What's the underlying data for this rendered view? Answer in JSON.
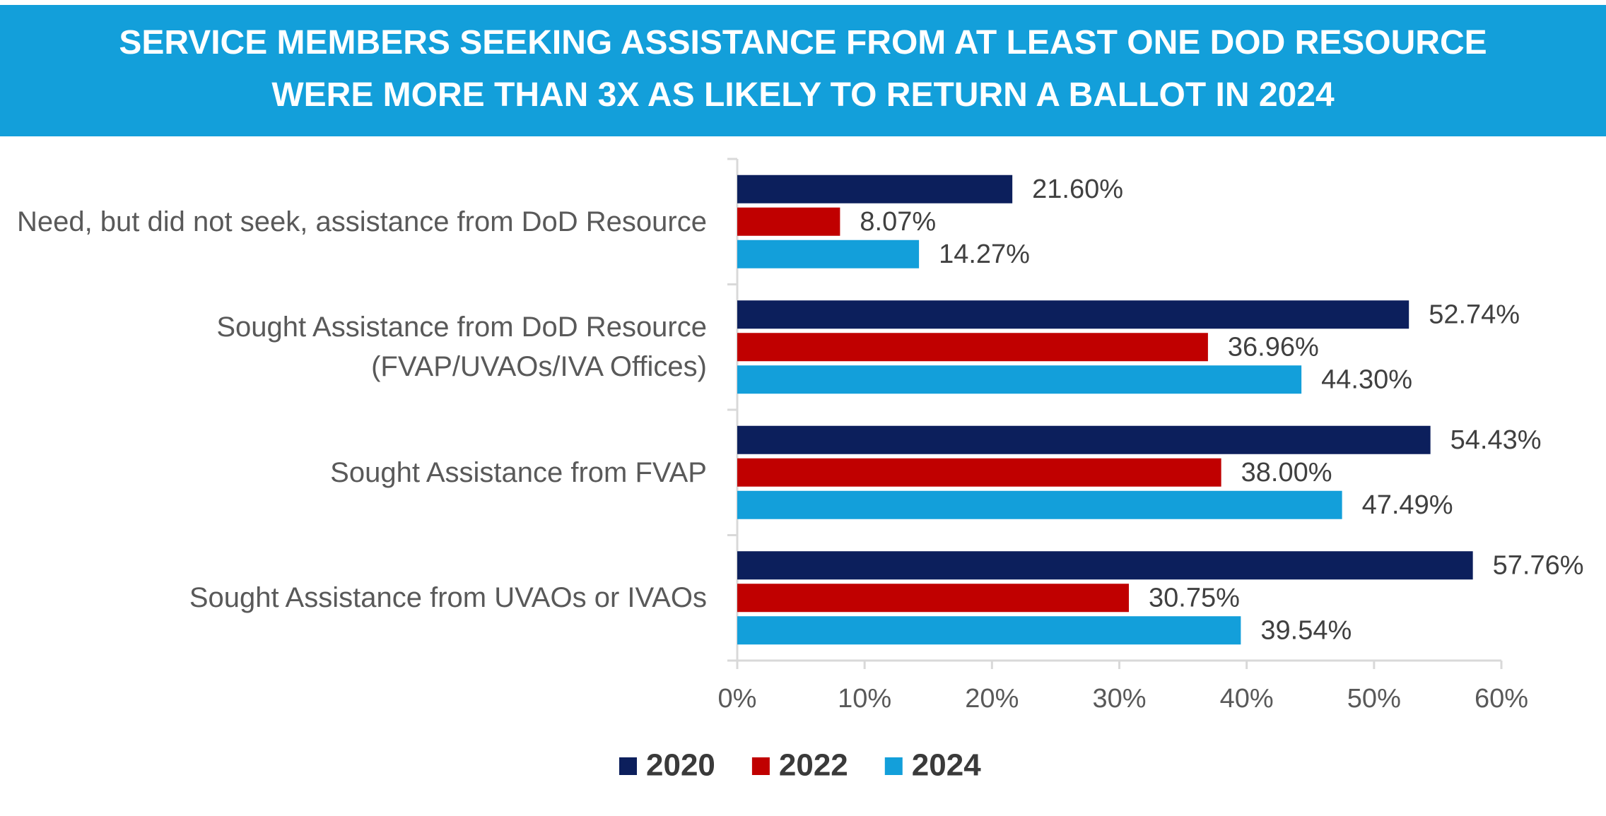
{
  "chart_data": {
    "type": "bar",
    "orientation": "horizontal",
    "title": [
      "SERVICE MEMBERS SEEKING ASSISTANCE FROM AT LEAST ONE DOD RESOURCE",
      "WERE MORE THAN 3X AS LIKELY TO RETURN A BALLOT IN 2024"
    ],
    "categories": [
      "Need, but did not seek, assistance from DoD Resource",
      "Sought Assistance from DoD Resource (FVAP/UVAOs/IVA Offices)",
      "Sought Assistance from FVAP",
      "Sought Assistance from UVAOs or IVAOs"
    ],
    "series": [
      {
        "name": "2020",
        "color": "#0c1f5c",
        "values": [
          21.6,
          52.74,
          54.43,
          57.76
        ],
        "value_labels": [
          "21.60%",
          "52.74%",
          "54.43%",
          "57.76%"
        ]
      },
      {
        "name": "2022",
        "color": "#c00000",
        "values": [
          8.07,
          36.96,
          38.0,
          30.75
        ],
        "value_labels": [
          "8.07%",
          "36.96%",
          "38.00%",
          "30.75%"
        ]
      },
      {
        "name": "2024",
        "color": "#139fda",
        "values": [
          14.27,
          44.3,
          47.49,
          39.54
        ],
        "value_labels": [
          "14.27%",
          "44.30%",
          "47.49%",
          "39.54%"
        ]
      }
    ],
    "xlim": [
      0,
      60
    ],
    "xticks": [
      {
        "value": 0,
        "label": "0%"
      },
      {
        "value": 10,
        "label": "10%"
      },
      {
        "value": 20,
        "label": "20%"
      },
      {
        "value": 30,
        "label": "30%"
      },
      {
        "value": 40,
        "label": "40%"
      },
      {
        "value": 50,
        "label": "50%"
      },
      {
        "value": 60,
        "label": "60%"
      }
    ],
    "legend": "bottom"
  }
}
